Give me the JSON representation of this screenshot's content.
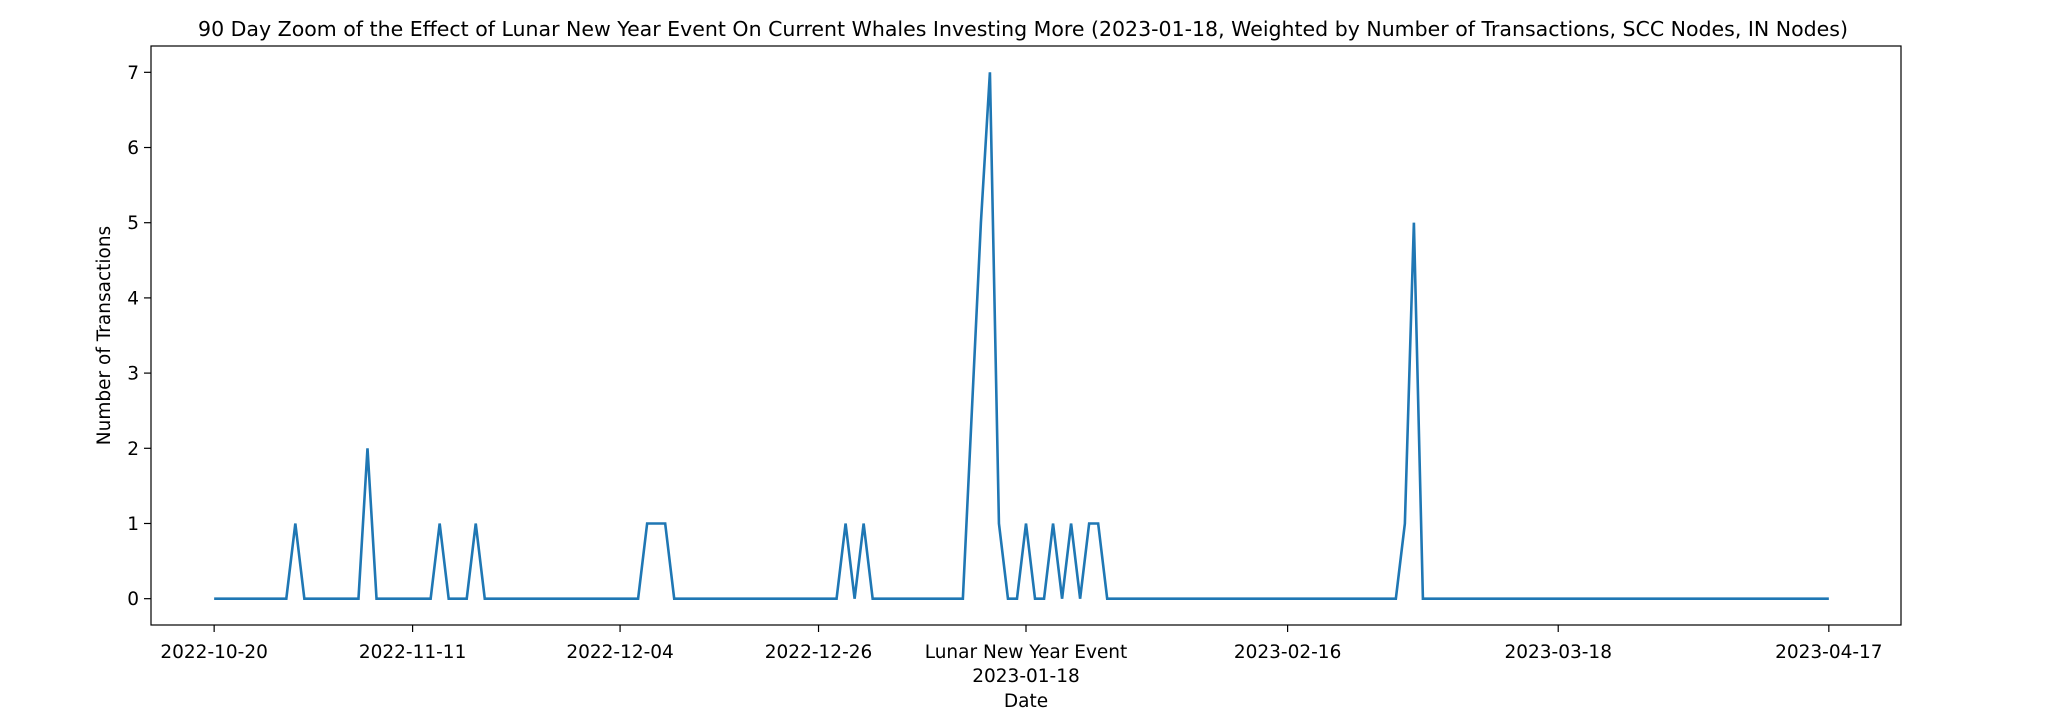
{
  "chart_data": {
    "type": "line",
    "title": "90 Day Zoom of the Effect of Lunar New Year Event On Current Whales Investing More (2023-01-18, Weighted by Number of Transactions, SCC Nodes, IN Nodes)",
    "xlabel": "Date",
    "ylabel": "Number of Transactions",
    "x_range": [
      "2022-10-13",
      "2023-04-25"
    ],
    "ylim": [
      -0.35,
      7.35
    ],
    "y_ticks": [
      0,
      1,
      2,
      3,
      4,
      5,
      6,
      7
    ],
    "x_ticks": [
      {
        "date": "2022-10-20",
        "label": "2022-10-20"
      },
      {
        "date": "2022-11-11",
        "label": "2022-11-11"
      },
      {
        "date": "2022-12-04",
        "label": "2022-12-04"
      },
      {
        "date": "2022-12-26",
        "label": "2022-12-26"
      },
      {
        "date": "2023-01-18",
        "label": "2023-01-18"
      },
      {
        "date": "2023-02-16",
        "label": "2023-02-16"
      },
      {
        "date": "2023-03-18",
        "label": "2023-03-18"
      },
      {
        "date": "2023-04-17",
        "label": "2023-04-17"
      }
    ],
    "event_marker": {
      "date": "2023-01-18",
      "label": "Lunar New Year Event"
    },
    "grid": false,
    "legend": "none",
    "series": [
      {
        "color": "#1f77b4",
        "points": [
          {
            "x": "2022-10-20",
            "y": 0
          },
          {
            "x": "2022-10-28",
            "y": 0
          },
          {
            "x": "2022-10-29",
            "y": 1
          },
          {
            "x": "2022-10-30",
            "y": 0
          },
          {
            "x": "2022-11-05",
            "y": 0
          },
          {
            "x": "2022-11-06",
            "y": 2
          },
          {
            "x": "2022-11-07",
            "y": 0
          },
          {
            "x": "2022-11-13",
            "y": 0
          },
          {
            "x": "2022-11-14",
            "y": 1
          },
          {
            "x": "2022-11-15",
            "y": 0
          },
          {
            "x": "2022-11-17",
            "y": 0
          },
          {
            "x": "2022-11-18",
            "y": 1
          },
          {
            "x": "2022-11-19",
            "y": 0
          },
          {
            "x": "2022-12-06",
            "y": 0
          },
          {
            "x": "2022-12-07",
            "y": 1
          },
          {
            "x": "2022-12-09",
            "y": 1
          },
          {
            "x": "2022-12-10",
            "y": 0
          },
          {
            "x": "2022-12-28",
            "y": 0
          },
          {
            "x": "2022-12-29",
            "y": 1
          },
          {
            "x": "2022-12-30",
            "y": 0
          },
          {
            "x": "2022-12-31",
            "y": 1
          },
          {
            "x": "2023-01-01",
            "y": 0
          },
          {
            "x": "2023-01-11",
            "y": 0
          },
          {
            "x": "2023-01-13",
            "y": 5
          },
          {
            "x": "2023-01-14",
            "y": 7
          },
          {
            "x": "2023-01-15",
            "y": 1
          },
          {
            "x": "2023-01-16",
            "y": 0
          },
          {
            "x": "2023-01-17",
            "y": 0
          },
          {
            "x": "2023-01-18",
            "y": 1
          },
          {
            "x": "2023-01-19",
            "y": 0
          },
          {
            "x": "2023-01-20",
            "y": 0
          },
          {
            "x": "2023-01-21",
            "y": 1
          },
          {
            "x": "2023-01-22",
            "y": 0
          },
          {
            "x": "2023-01-23",
            "y": 1
          },
          {
            "x": "2023-01-24",
            "y": 0
          },
          {
            "x": "2023-01-25",
            "y": 1
          },
          {
            "x": "2023-01-26",
            "y": 1
          },
          {
            "x": "2023-01-27",
            "y": 0
          },
          {
            "x": "2023-02-28",
            "y": 0
          },
          {
            "x": "2023-03-01",
            "y": 1
          },
          {
            "x": "2023-03-02",
            "y": 5
          },
          {
            "x": "2023-03-03",
            "y": 0
          },
          {
            "x": "2023-04-17",
            "y": 0
          }
        ]
      }
    ]
  }
}
